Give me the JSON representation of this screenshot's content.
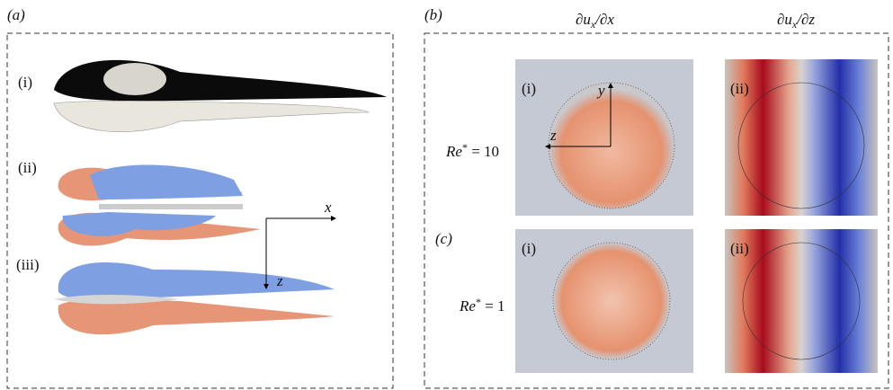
{
  "panel_a": {
    "label": "(a)",
    "rows": [
      "(i)",
      "(ii)",
      "(iii)"
    ],
    "axes": {
      "x": "x",
      "z": "z"
    }
  },
  "panel_b": {
    "label": "(b)",
    "columns": [
      {
        "base": "∂u",
        "sub": "x",
        "tail": "/∂x"
      },
      {
        "base": "∂u",
        "sub": "x",
        "tail": "/∂z"
      }
    ],
    "cell_labels": [
      "(i)",
      "(ii)"
    ],
    "axes": {
      "y": "y",
      "z": "z"
    },
    "rows": [
      {
        "symbol": "Re",
        "sup": "*",
        "value": " = 10"
      },
      {
        "symbol": "Re",
        "sup": "*",
        "value": " = 1"
      }
    ]
  },
  "panel_c": {
    "label": "(c)",
    "cell_labels": [
      "(i)",
      "(ii)"
    ]
  }
}
